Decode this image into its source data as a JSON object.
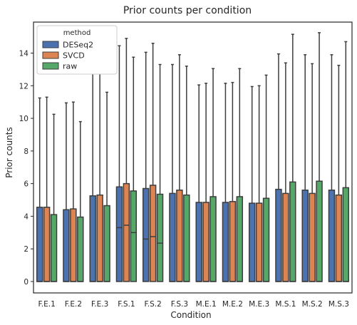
{
  "chart_data": {
    "type": "bar",
    "title": "Prior counts per condition",
    "xlabel": "Condition",
    "ylabel": "Prior counts",
    "ylim": [
      -0.7,
      15.9
    ],
    "yticks": [
      0,
      2,
      4,
      6,
      8,
      10,
      12,
      14
    ],
    "legend_title": "method",
    "legend_position": "top-left",
    "grid": false,
    "categories": [
      "F.E.1",
      "F.E.2",
      "F.E.3",
      "F.S.1",
      "F.S.2",
      "F.S.3",
      "M.E.1",
      "M.E.2",
      "M.E.3",
      "M.S.1",
      "M.S.2",
      "M.S.3"
    ],
    "series": [
      {
        "name": "DESeq2",
        "color": "#4c72b0",
        "q1": [
          0,
          0,
          0,
          0,
          0,
          0,
          0,
          0,
          0,
          0,
          0,
          0
        ],
        "median": [
          0,
          0,
          0,
          3.3,
          2.6,
          0,
          0,
          0,
          0,
          0,
          0,
          0
        ],
        "q3": [
          4.55,
          4.4,
          5.25,
          5.8,
          5.7,
          5.4,
          4.85,
          4.85,
          4.8,
          5.65,
          5.6,
          5.6
        ],
        "whisker_high": [
          11.25,
          10.95,
          13.0,
          14.45,
          14.05,
          13.3,
          12.05,
          12.15,
          11.95,
          13.95,
          13.9,
          13.9
        ]
      },
      {
        "name": "SVCD",
        "color": "#dd8452",
        "q1": [
          0,
          0,
          0,
          0,
          0,
          0,
          0,
          0,
          0,
          0,
          0,
          0
        ],
        "median": [
          0,
          0,
          0,
          3.45,
          2.75,
          0,
          0,
          0,
          0,
          0,
          0,
          0
        ],
        "q3": [
          4.55,
          4.45,
          5.3,
          6.0,
          5.9,
          5.6,
          4.85,
          4.9,
          4.8,
          5.4,
          5.4,
          5.3
        ],
        "whisker_high": [
          11.3,
          11.0,
          13.1,
          14.9,
          14.6,
          13.9,
          12.15,
          12.2,
          12.0,
          13.4,
          13.35,
          13.25
        ]
      },
      {
        "name": "raw",
        "color": "#55a868",
        "q1": [
          0,
          0,
          0,
          0,
          0,
          0,
          0,
          0,
          0,
          0,
          0,
          0
        ],
        "median": [
          0,
          0,
          0,
          3.0,
          2.35,
          0,
          0,
          0,
          0,
          0,
          0,
          0
        ],
        "q3": [
          4.1,
          3.95,
          4.65,
          5.55,
          5.35,
          5.3,
          5.2,
          5.2,
          5.1,
          6.1,
          6.15,
          5.75
        ],
        "whisker_high": [
          10.25,
          9.8,
          11.6,
          13.75,
          13.3,
          13.2,
          13.05,
          13.05,
          12.65,
          15.15,
          15.25,
          14.7
        ]
      }
    ]
  }
}
